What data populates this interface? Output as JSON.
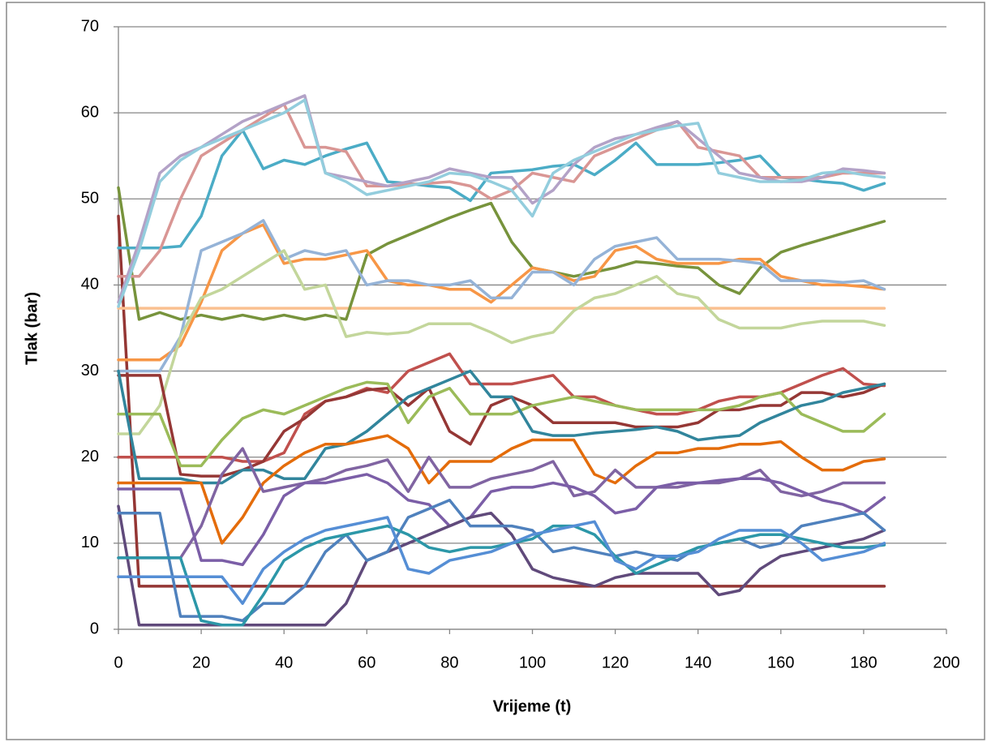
{
  "chart_data": {
    "type": "line",
    "xlabel": "Vrijeme (t)",
    "ylabel": "Tlak (bar)",
    "x": [
      0,
      5,
      10,
      15,
      20,
      25,
      30,
      35,
      40,
      45,
      50,
      55,
      60,
      65,
      70,
      75,
      80,
      85,
      90,
      95,
      100,
      105,
      110,
      115,
      120,
      125,
      130,
      135,
      140,
      145,
      150,
      155,
      160,
      165,
      170,
      175,
      180,
      185
    ],
    "xlim": [
      0,
      200
    ],
    "xticks": [
      0,
      20,
      40,
      60,
      80,
      100,
      120,
      140,
      160,
      180,
      200
    ],
    "ylim": [
      0,
      70
    ],
    "yticks": [
      0,
      10,
      20,
      30,
      40,
      50,
      60,
      70
    ],
    "grid": true,
    "series": [
      {
        "color": "#943634",
        "values": [
          48,
          5,
          5,
          5,
          5,
          5,
          5,
          5,
          5,
          5,
          5,
          5,
          5,
          5,
          5,
          5,
          5,
          5,
          5,
          5,
          5,
          5,
          5,
          5,
          5,
          5,
          5,
          5,
          5,
          5,
          5,
          5,
          5,
          5,
          5,
          5,
          5,
          5
        ]
      },
      {
        "color": "#fac090",
        "values": [
          37.3,
          37.3,
          37.3,
          37.3,
          37.3,
          37.3,
          37.3,
          37.3,
          37.3,
          37.3,
          37.3,
          37.3,
          37.3,
          37.3,
          37.3,
          37.3,
          37.3,
          37.3,
          37.3,
          37.3,
          37.3,
          37.3,
          37.3,
          37.3,
          37.3,
          37.3,
          37.3,
          37.3,
          37.3,
          37.3,
          37.3,
          37.3,
          37.3,
          37.3,
          37.3,
          37.3,
          37.3,
          37.3
        ]
      },
      {
        "color": "#77933c",
        "values": [
          51.3,
          36,
          36.8,
          36,
          36.5,
          36,
          36.5,
          36,
          36.5,
          36,
          36.5,
          36,
          43.5,
          44.8,
          45.8,
          46.8,
          47.8,
          48.7,
          49.5,
          45,
          42,
          41.5,
          41,
          41.5,
          42,
          42.7,
          42.5,
          42.2,
          42,
          40,
          39,
          42,
          43.8,
          44.6,
          45.3,
          46,
          46.7,
          47.4
        ]
      },
      {
        "color": "#4bacc6",
        "values": [
          44.3,
          44.3,
          44.3,
          44.5,
          48,
          55,
          58,
          53.5,
          54.5,
          54,
          55,
          55.8,
          56.5,
          52,
          51.8,
          51.5,
          51.3,
          49.8,
          53,
          53.2,
          53.4,
          53.8,
          54,
          52.8,
          54.5,
          56.5,
          54,
          54,
          54,
          54.2,
          54.5,
          55,
          52.5,
          52.3,
          52,
          51.8,
          51,
          51.8
        ]
      },
      {
        "color": "#d99694",
        "values": [
          41,
          41,
          44,
          50,
          55,
          56.5,
          58,
          59.5,
          61,
          56,
          56,
          55.5,
          51.5,
          51.5,
          51.7,
          51.8,
          52,
          51.5,
          50,
          51,
          53,
          52.5,
          52,
          55,
          56,
          57,
          58,
          59,
          56,
          55.5,
          55,
          52.5,
          52.5,
          52.5,
          52.5,
          53,
          53,
          53
        ]
      },
      {
        "color": "#b3a2c7",
        "values": [
          38,
          45,
          53,
          55,
          56,
          57.5,
          59,
          60,
          61,
          62,
          53,
          52.5,
          52,
          51.5,
          52,
          52.5,
          53.5,
          53,
          52.5,
          52.5,
          49.5,
          51,
          54,
          56,
          57,
          57.5,
          58.3,
          59,
          57,
          55,
          53,
          52.5,
          52,
          52,
          52.5,
          53.5,
          53.3,
          53
        ]
      },
      {
        "color": "#93cddd",
        "values": [
          37.5,
          44,
          52,
          54.5,
          56,
          57,
          58,
          59,
          60,
          61.5,
          53,
          52,
          50.5,
          51,
          51.5,
          52,
          53,
          52.8,
          52,
          51,
          48,
          53,
          54.5,
          55.5,
          56.5,
          57.5,
          58,
          58.5,
          58.8,
          53,
          52.5,
          52,
          52,
          52.2,
          53,
          53.2,
          52.8,
          52.5
        ]
      },
      {
        "color": "#f79646",
        "values": [
          31.3,
          31.3,
          31.3,
          33,
          38,
          44,
          46,
          47,
          42.5,
          43,
          43,
          43.5,
          44,
          40.5,
          40,
          40,
          39.5,
          39.5,
          38,
          40,
          42,
          41.5,
          40.5,
          41,
          44,
          44.5,
          43,
          42.5,
          42.5,
          42.5,
          43,
          43,
          41,
          40.5,
          40,
          40,
          39.8,
          39.5
        ]
      },
      {
        "color": "#95b3d7",
        "values": [
          30,
          30,
          30,
          34,
          44,
          45,
          46,
          47.5,
          43,
          44,
          43.5,
          44,
          40,
          40.5,
          40.5,
          40,
          40,
          40.5,
          38.5,
          38.5,
          41.5,
          41.5,
          40,
          43,
          44.5,
          45,
          45.5,
          43,
          43,
          43,
          42.8,
          42.5,
          40.5,
          40.5,
          40.5,
          40.3,
          40.5,
          39.5
        ]
      },
      {
        "color": "#c3d69b",
        "values": [
          22.7,
          22.7,
          26,
          34,
          38.5,
          39.5,
          41,
          42.5,
          44,
          39.5,
          40,
          34,
          34.5,
          34.3,
          34.5,
          35.5,
          35.5,
          35.5,
          34.5,
          33.3,
          34,
          34.5,
          37,
          38.5,
          39,
          40,
          41,
          39,
          38.5,
          36,
          35,
          35,
          35,
          35.5,
          35.8,
          35.8,
          35.8,
          35.3
        ]
      },
      {
        "color": "#c0504d",
        "values": [
          20,
          20,
          20,
          20,
          20,
          20,
          19.5,
          19.5,
          20.5,
          25,
          26.5,
          27,
          28,
          27.5,
          30,
          31,
          32,
          28.5,
          28.5,
          28.5,
          29,
          29.5,
          27,
          27,
          26,
          25.5,
          25,
          25,
          25.5,
          26.5,
          27,
          27,
          27.5,
          28.5,
          29.5,
          30.3,
          28.5,
          28.3
        ]
      },
      {
        "color": "#953735",
        "values": [
          29.5,
          29.5,
          29.5,
          18,
          17.8,
          17.8,
          18.5,
          19.5,
          23,
          24.5,
          26.5,
          27,
          27.8,
          28,
          26,
          28,
          23,
          21.5,
          26,
          27,
          26,
          24,
          24,
          24,
          24,
          23.5,
          23.5,
          23.5,
          24,
          25.5,
          25.5,
          26,
          26,
          27.5,
          27.5,
          27,
          27.5,
          28.5
        ]
      },
      {
        "color": "#9bbb59",
        "values": [
          25,
          25,
          25,
          19,
          19,
          22,
          24.5,
          25.5,
          25,
          26,
          27,
          28,
          28.7,
          28.5,
          24,
          27,
          28,
          25,
          25,
          25,
          26,
          26.5,
          27,
          26.5,
          26,
          25.5,
          25.5,
          25.5,
          25.5,
          25.5,
          26,
          27,
          27.5,
          25,
          24,
          23,
          23,
          25
        ]
      },
      {
        "color": "#31859c",
        "values": [
          30,
          17.5,
          17.5,
          17.5,
          17,
          17,
          18.5,
          18.5,
          17.5,
          17.5,
          21,
          21.5,
          23,
          25,
          27,
          28,
          29,
          30,
          27,
          27,
          23,
          22.5,
          22.5,
          22.8,
          23,
          23.2,
          23.5,
          23,
          22,
          22.3,
          22.5,
          24,
          25,
          26,
          26.5,
          27.5,
          28,
          28.5
        ]
      },
      {
        "color": "#e46c0a",
        "values": [
          17,
          17,
          17,
          17,
          17,
          10,
          13,
          17,
          19,
          20.5,
          21.5,
          21.5,
          22,
          22.5,
          21,
          17,
          19.5,
          19.5,
          19.5,
          21,
          22,
          22,
          22,
          18,
          17,
          19,
          20.5,
          20.5,
          21,
          21,
          21.5,
          21.5,
          21.8,
          20,
          18.5,
          18.5,
          19.5,
          19.8
        ]
      },
      {
        "color": "#8064a2",
        "values": [
          8.3,
          8.3,
          8.3,
          8.3,
          12,
          18,
          21,
          16,
          16.5,
          17,
          17.5,
          18.5,
          19,
          19.7,
          16,
          20,
          16.5,
          16.5,
          17.5,
          18,
          18.5,
          19.5,
          15.5,
          16,
          18.5,
          16.5,
          16.5,
          16.5,
          17,
          17,
          17.5,
          18.5,
          16,
          15.5,
          16,
          17,
          17,
          17
        ]
      },
      {
        "color": "#7b5ea7",
        "values": [
          16.3,
          16.3,
          16.3,
          16.3,
          8,
          8,
          7.5,
          11,
          15.5,
          17,
          17,
          17.5,
          18,
          17,
          15,
          14.5,
          12,
          13,
          16,
          16.5,
          16.5,
          17,
          16.5,
          15.5,
          13.5,
          14,
          16.5,
          17,
          17,
          17.3,
          17.5,
          17.5,
          17,
          16,
          15,
          14.5,
          13.5,
          15.3
        ]
      },
      {
        "color": "#604a7b",
        "values": [
          14.3,
          0.5,
          0.5,
          0.5,
          0.5,
          0.5,
          0.5,
          0.5,
          0.5,
          0.5,
          0.5,
          3,
          8,
          9,
          10,
          11,
          12,
          13,
          13.5,
          11,
          7,
          6,
          5.5,
          5,
          6,
          6.5,
          6.5,
          6.5,
          6.5,
          4,
          4.5,
          7,
          8.5,
          9,
          9.5,
          10,
          10.5,
          11.5
        ]
      },
      {
        "color": "#4f81bd",
        "values": [
          13.5,
          13.5,
          13.5,
          1.5,
          1.5,
          1.5,
          1,
          3,
          3,
          5,
          9,
          11,
          8,
          9,
          13,
          14,
          15,
          12,
          12,
          12,
          11.5,
          9,
          9.5,
          9,
          8.5,
          9,
          8.5,
          8,
          9.5,
          10,
          10.5,
          9.5,
          10,
          12,
          12.5,
          13,
          13.5,
          11.5
        ]
      },
      {
        "color": "#2c97a8",
        "values": [
          8.3,
          8.3,
          8.3,
          8.3,
          1,
          0.5,
          0.5,
          4,
          8,
          9.5,
          10.5,
          11,
          11.5,
          12,
          11,
          9.5,
          9,
          9.5,
          9.5,
          10,
          10.5,
          12,
          12,
          11,
          8.5,
          6.5,
          7.5,
          8.5,
          9.5,
          10,
          10.5,
          11,
          11,
          10.5,
          10,
          9.5,
          9.5,
          9.8
        ]
      },
      {
        "color": "#558ed5",
        "values": [
          6.1,
          6.1,
          6.1,
          6.1,
          6.1,
          6.1,
          3,
          7,
          9,
          10.5,
          11.5,
          12,
          12.5,
          13,
          7,
          6.5,
          8,
          8.5,
          9,
          10,
          11,
          11.5,
          12,
          12.5,
          8,
          7,
          8.5,
          8.5,
          9,
          10.5,
          11.5,
          11.5,
          11.5,
          10,
          8,
          8.5,
          9,
          10
        ]
      }
    ]
  }
}
